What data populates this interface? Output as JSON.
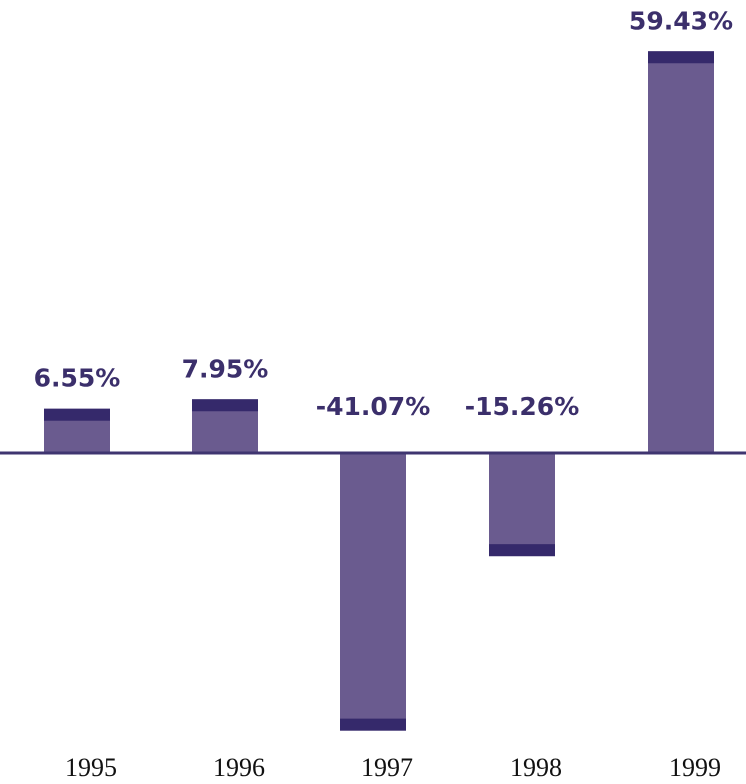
{
  "chart_data": {
    "type": "bar",
    "title": "",
    "xlabel": "",
    "ylabel": "",
    "categories": [
      "1995",
      "1996",
      "1997",
      "1998",
      "1999"
    ],
    "values": [
      6.55,
      7.95,
      -41.07,
      -15.26,
      59.43
    ],
    "data_labels": [
      "6.55%",
      "7.95%",
      "-41.07%",
      "-15.26%",
      "59.43%"
    ],
    "ylim": [
      -41.07,
      59.43
    ],
    "grid": false,
    "legend": "none",
    "colors": {
      "bar_fill": "#6a5b8f",
      "bar_cap": "#35296b",
      "axis_line": "#3f3570",
      "label_text": "#3b2f6b",
      "tick_text": "#111111"
    }
  }
}
